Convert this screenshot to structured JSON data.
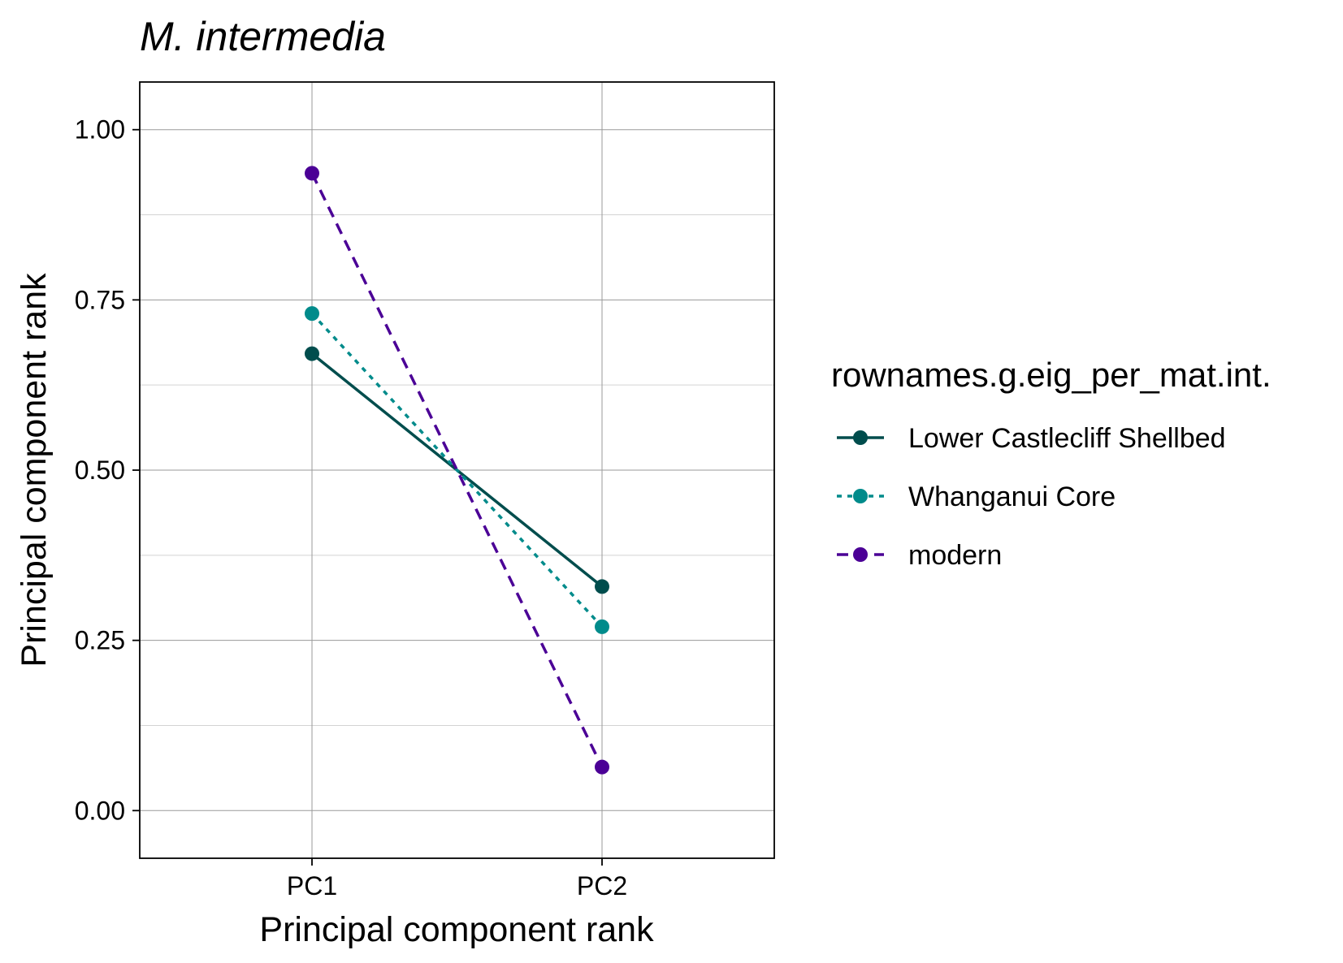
{
  "chart_data": {
    "type": "line",
    "title": "M. intermedia",
    "xlabel": "Principal component rank",
    "ylabel": "Principal component rank",
    "categories": [
      "PC1",
      "PC2"
    ],
    "ylim": [
      -0.07,
      1.07
    ],
    "yticks": [
      0.0,
      0.25,
      0.5,
      0.75,
      1.0
    ],
    "ytick_labels": [
      "0.00",
      "0.25",
      "0.50",
      "0.75",
      "1.00"
    ],
    "grid": true,
    "legend": {
      "title": "rownames.g.eig_per_mat.int.",
      "position": "right"
    },
    "series": [
      {
        "name": "Lower Castlecliff Shellbed",
        "values": [
          0.671,
          0.329
        ],
        "color": "#004D4D",
        "line_style": "solid"
      },
      {
        "name": "Whanganui Core",
        "values": [
          0.73,
          0.27
        ],
        "color": "#008B8B",
        "line_style": "dotted"
      },
      {
        "name": "modern",
        "values": [
          0.936,
          0.064
        ],
        "color": "#4B0096",
        "line_style": "dashed"
      }
    ]
  }
}
